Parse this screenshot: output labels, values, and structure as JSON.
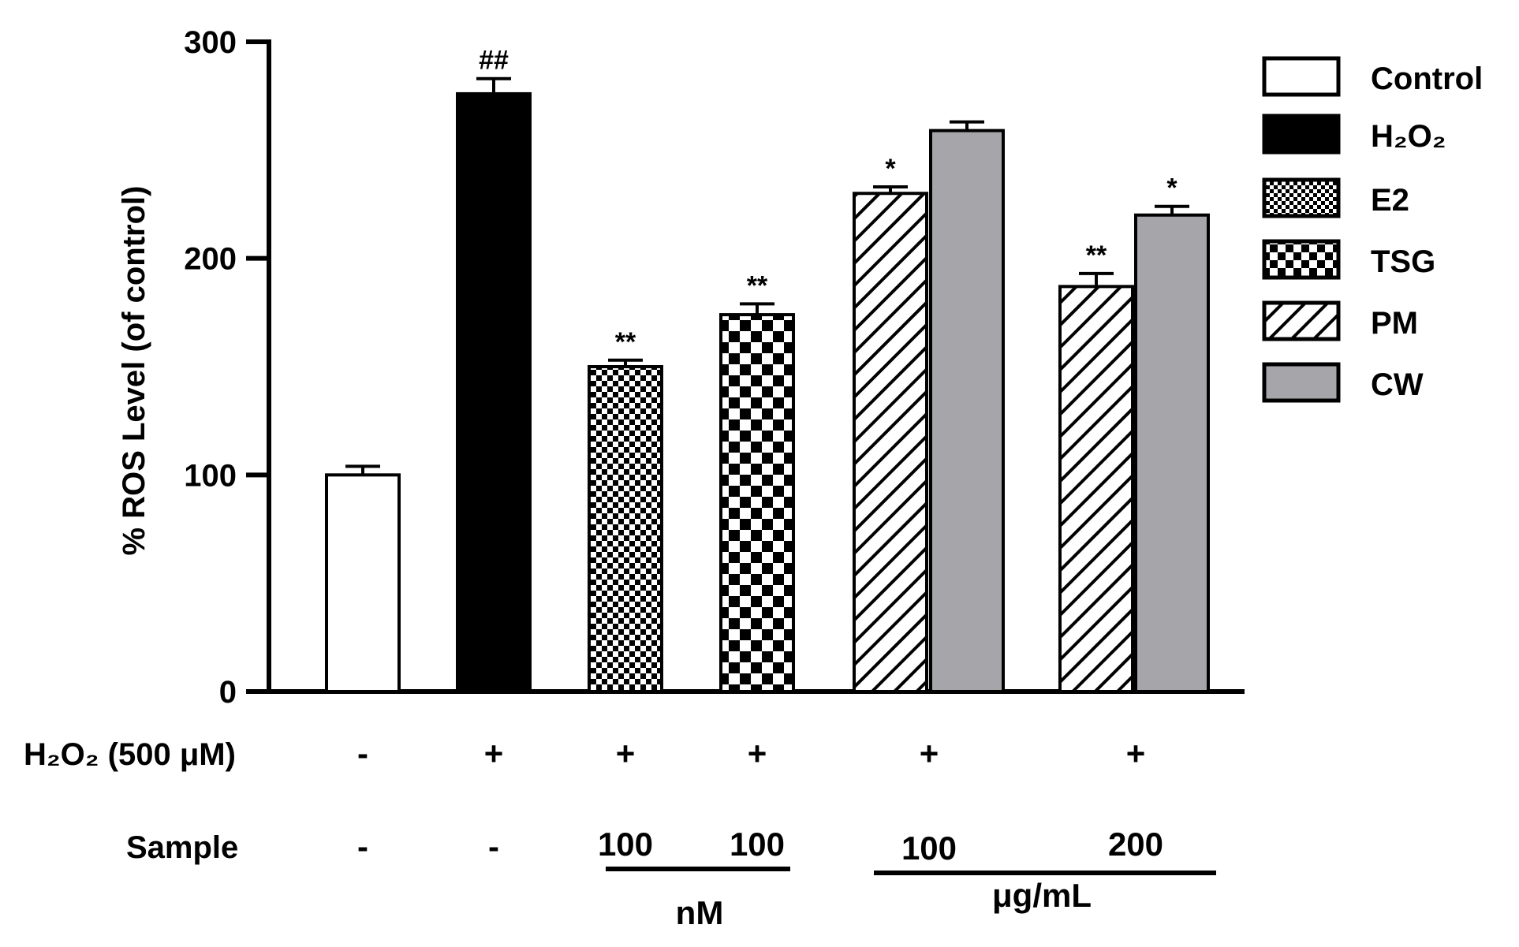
{
  "chart_data": {
    "type": "bar",
    "ylabel": "% ROS Level (of control)",
    "ylim": [
      0,
      300
    ],
    "yticks": [
      "0",
      "100",
      "200",
      "300"
    ],
    "grid": false,
    "legend_position": "right",
    "series": [
      {
        "name": "Control",
        "value": 100,
        "error": 4,
        "sig": "",
        "color": "#ffffff",
        "fill": "white"
      },
      {
        "name": "H₂O₂",
        "value": 276,
        "error": 7,
        "sig": "##",
        "color": "#000000",
        "fill": "black"
      },
      {
        "name": "E2",
        "value": 150,
        "error": 3,
        "sig": "**",
        "color": "#000000",
        "fill": "fine-checker"
      },
      {
        "name": "TSG",
        "value": 174,
        "error": 5,
        "sig": "**",
        "color": "#000000",
        "fill": "coarse-checker"
      },
      {
        "name": "PM",
        "value": 230,
        "error": 3,
        "sig": "*",
        "color": "#000000",
        "fill": "diagonal-hatch"
      },
      {
        "name": "CW",
        "value": 259,
        "error": 4,
        "sig": "",
        "color": "#a6a6aa",
        "fill": "gray"
      },
      {
        "name": "PM",
        "value": 187,
        "error": 6,
        "sig": "**",
        "color": "#000000",
        "fill": "diagonal-hatch"
      },
      {
        "name": "CW",
        "value": 220,
        "error": 4,
        "sig": "*",
        "color": "#a6a6aa",
        "fill": "gray"
      }
    ],
    "legend": [
      {
        "label": "Control",
        "fill": "white"
      },
      {
        "label": "H₂O₂",
        "fill": "black"
      },
      {
        "label": "E2",
        "fill": "fine-checker"
      },
      {
        "label": "TSG",
        "fill": "coarse-checker"
      },
      {
        "label": "PM",
        "fill": "diagonal-hatch"
      },
      {
        "label": "CW",
        "fill": "gray"
      }
    ],
    "conditions": {
      "h2o2_row": {
        "label": "H₂O₂ (500 μM)",
        "groups": [
          {
            "group": "Control",
            "value": "-"
          },
          {
            "group": "H₂O₂",
            "value": "+"
          },
          {
            "group": "E2",
            "value": "+"
          },
          {
            "group": "TSG",
            "value": "+"
          },
          {
            "group": "PM/CW 100",
            "value": "+"
          },
          {
            "group": "PM/CW 200",
            "value": "+"
          }
        ]
      },
      "sample_row": {
        "label": "Sample",
        "groups": [
          {
            "group": "Control",
            "value": "-"
          },
          {
            "group": "H₂O₂",
            "value": "-"
          },
          {
            "group": "E2",
            "value": "100"
          },
          {
            "group": "TSG",
            "value": "100"
          },
          {
            "group": "PM/CW 100",
            "value": "100"
          },
          {
            "group": "PM/CW 200",
            "value": "200"
          }
        ]
      },
      "units": [
        {
          "label": "nM",
          "applies_to": [
            "E2",
            "TSG"
          ]
        },
        {
          "label": "μg/mL",
          "applies_to": [
            "PM/CW 100",
            "PM/CW 200"
          ]
        }
      ]
    }
  }
}
